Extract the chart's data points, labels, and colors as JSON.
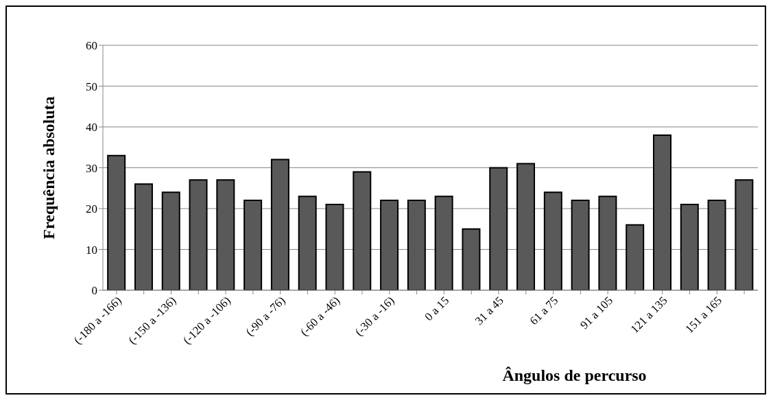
{
  "chart_data": {
    "type": "bar",
    "xlabel": "Ângulos de percurso",
    "ylabel": "Frequência absoluta",
    "categories": [
      "(-180 a -166)",
      null,
      "(-150 a -136)",
      null,
      "(-120 a -106)",
      null,
      "(-90 a -76)",
      null,
      "(-60 a -46)",
      null,
      "(-30 a -16)",
      null,
      "0 a 15",
      null,
      "31 a 45",
      null,
      "61 a 75",
      null,
      "91 a 105",
      null,
      "121 a 135",
      null,
      "151 a 165",
      null
    ],
    "values": [
      33,
      26,
      24,
      27,
      27,
      22,
      32,
      23,
      21,
      29,
      22,
      22,
      23,
      15,
      30,
      31,
      24,
      22,
      23,
      16,
      38,
      21,
      22,
      27
    ],
    "color": "#595959",
    "ylim": [
      0,
      60
    ],
    "yticks": [
      0,
      10,
      20,
      30,
      40,
      50,
      60
    ],
    "grid": "y",
    "legend": false
  }
}
